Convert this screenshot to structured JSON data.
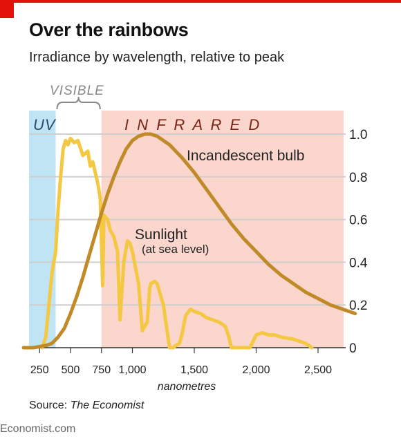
{
  "header": {
    "title": "Over the rainbows",
    "subtitle": "Irradiance by wavelength, relative to peak"
  },
  "footer": {
    "source_label": "Source: ",
    "source_name": "The Economist",
    "brand": "Economist.com"
  },
  "colors": {
    "accent": "#e3120b",
    "uv_band": "#bfe4f4",
    "infrared_band": "#fbd6cd",
    "incandescent_line": "#c08a28",
    "sunlight_line": "#f4c842",
    "grid": "#cfcfcf"
  },
  "chart_data": {
    "type": "line",
    "xlabel": "nanometres",
    "ylabel": "",
    "xlim": [
      120,
      2800
    ],
    "ylim": [
      0,
      1.0
    ],
    "x_ticks": [
      250,
      500,
      750,
      1000,
      1500,
      2000,
      2500
    ],
    "x_tick_labels": [
      "250",
      "500",
      "750",
      "1,000",
      "1,500",
      "2,000",
      "2,500"
    ],
    "y_ticks": [
      0,
      0.2,
      0.4,
      0.6,
      0.8,
      1.0
    ],
    "y_tick_labels": [
      "0",
      "0.2",
      "0.4",
      "0.6",
      "0.8",
      "1.0"
    ],
    "grid": true,
    "y_axis_side": "right",
    "bands": [
      {
        "name": "UV",
        "label": "UV",
        "x0": 120,
        "x1": 380
      },
      {
        "name": "Visible",
        "label": "VISIBLE",
        "x0": 380,
        "x1": 750
      },
      {
        "name": "Infrared",
        "label": "I N F R A R E D",
        "x0": 750,
        "x1": 2800
      }
    ],
    "series": [
      {
        "name": "Incandescent bulb",
        "label": "Incandescent bulb",
        "x": [
          120,
          200,
          300,
          350,
          400,
          450,
          500,
          550,
          600,
          650,
          700,
          750,
          800,
          850,
          900,
          950,
          1000,
          1050,
          1100,
          1150,
          1200,
          1300,
          1400,
          1500,
          1600,
          1700,
          1800,
          1900,
          2000,
          2100,
          2200,
          2300,
          2400,
          2500,
          2600,
          2700,
          2800
        ],
        "y": [
          0.0,
          0.0,
          0.01,
          0.02,
          0.05,
          0.09,
          0.16,
          0.24,
          0.33,
          0.43,
          0.53,
          0.63,
          0.72,
          0.8,
          0.87,
          0.93,
          0.97,
          0.99,
          1.0,
          1.0,
          0.99,
          0.95,
          0.89,
          0.82,
          0.74,
          0.66,
          0.58,
          0.51,
          0.45,
          0.39,
          0.34,
          0.3,
          0.26,
          0.23,
          0.2,
          0.18,
          0.16
        ]
      },
      {
        "name": "Sunlight",
        "label": "Sunlight",
        "sublabel": "(at sea level)",
        "x": [
          270,
          300,
          320,
          350,
          380,
          400,
          420,
          440,
          460,
          480,
          500,
          530,
          560,
          600,
          640,
          660,
          680,
          700,
          720,
          740,
          760,
          770,
          800,
          820,
          850,
          880,
          900,
          930,
          960,
          980,
          1000,
          1050,
          1080,
          1100,
          1120,
          1140,
          1150,
          1180,
          1200,
          1250,
          1300,
          1330,
          1350,
          1380,
          1400,
          1430,
          1470,
          1500,
          1550,
          1600,
          1650,
          1700,
          1750,
          1780,
          1800,
          1820,
          1850,
          1900,
          1950,
          2000,
          2050,
          2100,
          2150,
          2200,
          2300,
          2400,
          2450
        ],
        "y": [
          0.0,
          0.05,
          0.17,
          0.35,
          0.45,
          0.65,
          0.8,
          0.93,
          0.97,
          0.95,
          0.98,
          0.96,
          0.97,
          0.9,
          0.92,
          0.85,
          0.87,
          0.82,
          0.77,
          0.7,
          0.29,
          0.62,
          0.6,
          0.55,
          0.52,
          0.45,
          0.13,
          0.4,
          0.5,
          0.49,
          0.45,
          0.3,
          0.08,
          0.1,
          0.12,
          0.28,
          0.3,
          0.31,
          0.3,
          0.2,
          0.0,
          0.0,
          0.01,
          0.02,
          0.06,
          0.15,
          0.18,
          0.17,
          0.16,
          0.14,
          0.13,
          0.12,
          0.1,
          0.05,
          0.0,
          0.0,
          0.0,
          0.0,
          0.0,
          0.06,
          0.07,
          0.06,
          0.06,
          0.05,
          0.04,
          0.02,
          0.0
        ]
      }
    ]
  }
}
